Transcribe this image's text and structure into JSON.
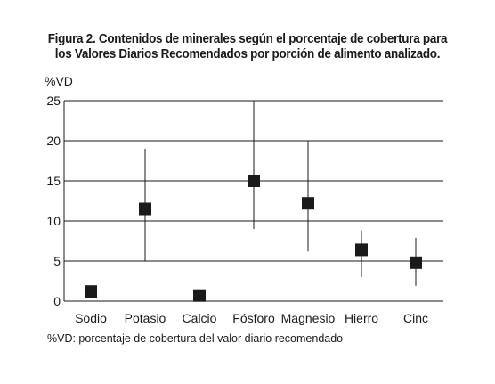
{
  "chart_data": {
    "type": "scatter",
    "title_line1": "Figura 2. Contenidos de minerales según el porcentaje de cobertura para",
    "title_line2": "los Valores Diarios Recomendados por porción de alimento analizado.",
    "ylabel": "%VD",
    "xlabel": "",
    "ylim": [
      0,
      25
    ],
    "yticks": [
      0,
      5,
      10,
      15,
      20,
      25
    ],
    "grid": true,
    "categories": [
      "Sodio",
      "Potasio",
      "Calcio",
      "Fósforo",
      "Magnesio",
      "Hierro",
      "Cinc"
    ],
    "series": [
      {
        "values": [
          1.2,
          11.5,
          0.7,
          15.0,
          12.2,
          6.4,
          4.8
        ],
        "low": [
          null,
          5.0,
          null,
          9.0,
          6.2,
          3.0,
          1.9
        ],
        "high": [
          null,
          19.0,
          null,
          25.0,
          20.0,
          8.8,
          7.9
        ]
      }
    ],
    "footnote": "%VD: porcentaje de cobertura del valor diario recomendado",
    "colors": {
      "marker": "#1a1a1a",
      "grid": "#1a1a1a"
    }
  }
}
